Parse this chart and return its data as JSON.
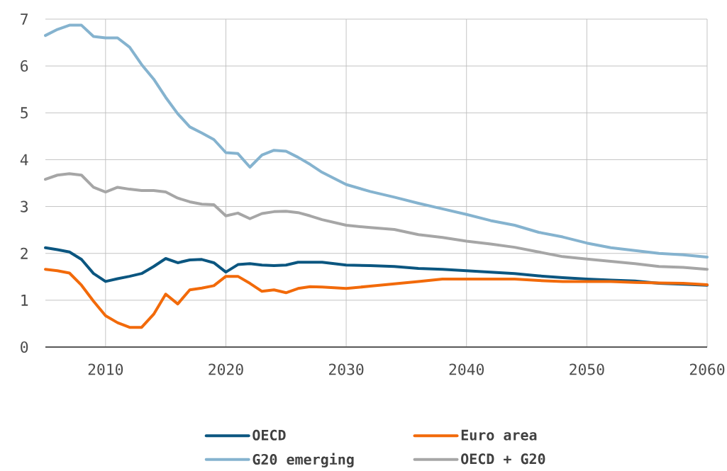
{
  "chart_data": {
    "type": "line",
    "x": [
      2005,
      2006,
      2007,
      2008,
      2009,
      2010,
      2011,
      2012,
      2013,
      2014,
      2015,
      2016,
      2017,
      2018,
      2019,
      2020,
      2021,
      2022,
      2023,
      2024,
      2025,
      2026,
      2027,
      2028,
      2030,
      2032,
      2034,
      2036,
      2038,
      2040,
      2042,
      2044,
      2046,
      2048,
      2050,
      2052,
      2054,
      2056,
      2058,
      2060
    ],
    "series": [
      {
        "name": "OECD",
        "color": "#0b5680",
        "values": [
          2.12,
          2.08,
          2.03,
          1.87,
          1.57,
          1.4,
          1.46,
          1.51,
          1.57,
          1.72,
          1.89,
          1.8,
          1.86,
          1.87,
          1.8,
          1.6,
          1.76,
          1.78,
          1.75,
          1.74,
          1.75,
          1.81,
          1.81,
          1.81,
          1.75,
          1.74,
          1.72,
          1.68,
          1.66,
          1.63,
          1.6,
          1.57,
          1.52,
          1.48,
          1.45,
          1.43,
          1.41,
          1.36,
          1.34,
          1.32
        ]
      },
      {
        "name": "Euro area",
        "color": "#f26a0a",
        "values": [
          1.66,
          1.63,
          1.58,
          1.32,
          0.98,
          0.67,
          0.52,
          0.42,
          0.42,
          0.7,
          1.13,
          0.92,
          1.22,
          1.26,
          1.31,
          1.51,
          1.51,
          1.36,
          1.19,
          1.22,
          1.16,
          1.25,
          1.29,
          1.28,
          1.25,
          1.3,
          1.35,
          1.4,
          1.45,
          1.45,
          1.45,
          1.45,
          1.42,
          1.4,
          1.4,
          1.4,
          1.38,
          1.37,
          1.36,
          1.33
        ]
      },
      {
        "name": "G20 emerging",
        "color": "#85b3cf",
        "values": [
          6.65,
          6.78,
          6.87,
          6.87,
          6.63,
          6.6,
          6.6,
          6.4,
          6.03,
          5.72,
          5.33,
          4.98,
          4.7,
          4.57,
          4.43,
          4.15,
          4.13,
          3.84,
          4.1,
          4.2,
          4.18,
          4.05,
          3.9,
          3.73,
          3.47,
          3.32,
          3.2,
          3.07,
          2.95,
          2.83,
          2.7,
          2.6,
          2.45,
          2.35,
          2.22,
          2.12,
          2.06,
          2.0,
          1.97,
          1.92
        ]
      },
      {
        "name": "OECD + G20",
        "color": "#a6a6a6",
        "values": [
          3.58,
          3.67,
          3.7,
          3.67,
          3.41,
          3.31,
          3.41,
          3.37,
          3.34,
          3.34,
          3.31,
          3.18,
          3.1,
          3.05,
          3.04,
          2.8,
          2.86,
          2.74,
          2.85,
          2.89,
          2.9,
          2.87,
          2.8,
          2.72,
          2.6,
          2.55,
          2.51,
          2.4,
          2.34,
          2.26,
          2.2,
          2.13,
          2.03,
          1.93,
          1.88,
          1.83,
          1.78,
          1.72,
          1.7,
          1.66
        ]
      }
    ],
    "xlim": [
      2005,
      2060
    ],
    "xticks": [
      2010,
      2020,
      2030,
      2040,
      2050,
      2060
    ],
    "ylim": [
      0,
      7
    ],
    "yticks": [
      0,
      1,
      2,
      3,
      4,
      5,
      6,
      7
    ],
    "grid": true,
    "legend": "bottom",
    "marker": "none",
    "line_style": "solid"
  }
}
